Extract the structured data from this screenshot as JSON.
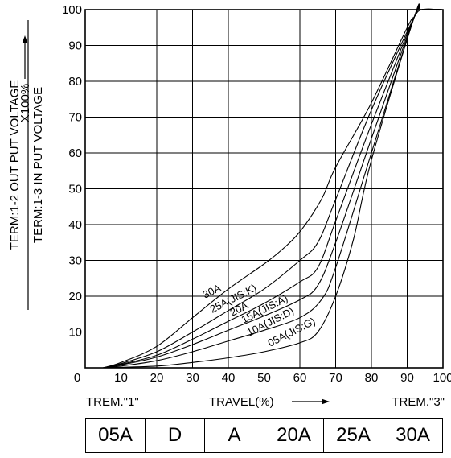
{
  "chart_data": {
    "type": "line",
    "title": "",
    "xlabel": "TRAVEL(%)",
    "ylabel": {
      "numerator": "TERM:1-2 OUT PUT VOLTAGE",
      "denominator": "TERM:1-3 IN PUT VOLTAGE",
      "multiplier": "X100%"
    },
    "xlim": [
      0,
      100
    ],
    "ylim": [
      0,
      100
    ],
    "x_ticks": [
      "0",
      "10",
      "20",
      "30",
      "40",
      "50",
      "60",
      "70",
      "80",
      "90",
      "100"
    ],
    "y_ticks": [
      "10",
      "20",
      "30",
      "40",
      "50",
      "60",
      "70",
      "80",
      "90",
      "100"
    ],
    "grid": true,
    "x_end_labels": {
      "left": "TREM.\"1\"",
      "right": "TREM.\"3\""
    },
    "series": [
      {
        "name": "30A",
        "label_angle": -27,
        "points": [
          [
            5,
            0
          ],
          [
            10,
            1.5
          ],
          [
            20,
            6
          ],
          [
            30,
            14
          ],
          [
            40,
            22
          ],
          [
            50,
            29
          ],
          [
            55,
            33
          ],
          [
            60,
            38
          ],
          [
            66,
            47
          ],
          [
            70,
            56
          ],
          [
            80,
            74
          ],
          [
            90,
            95
          ],
          [
            92,
            98
          ],
          [
            94,
            100
          ],
          [
            100,
            100
          ]
        ]
      },
      {
        "name": "25A(JIS:K)",
        "label_angle": -27,
        "points": [
          [
            5,
            0
          ],
          [
            10,
            1.2
          ],
          [
            20,
            4.5
          ],
          [
            30,
            10
          ],
          [
            40,
            16
          ],
          [
            50,
            22
          ],
          [
            60,
            30
          ],
          [
            65,
            35
          ],
          [
            70,
            47
          ],
          [
            80,
            72
          ],
          [
            92,
            98
          ],
          [
            94,
            100
          ],
          [
            100,
            100
          ]
        ]
      },
      {
        "name": "20A",
        "label_angle": -27,
        "points": [
          [
            5,
            0
          ],
          [
            10,
            1
          ],
          [
            20,
            3.5
          ],
          [
            30,
            8
          ],
          [
            40,
            13
          ],
          [
            50,
            18
          ],
          [
            60,
            24
          ],
          [
            65,
            28
          ],
          [
            70,
            41
          ],
          [
            80,
            68
          ],
          [
            92,
            98
          ],
          [
            94,
            100
          ],
          [
            100,
            100
          ]
        ]
      },
      {
        "name": "15A(JIS:A)",
        "label_angle": -27,
        "points": [
          [
            5,
            0
          ],
          [
            10,
            0.8
          ],
          [
            20,
            3
          ],
          [
            30,
            6.5
          ],
          [
            40,
            10.5
          ],
          [
            50,
            14.5
          ],
          [
            60,
            19
          ],
          [
            65,
            23
          ],
          [
            70,
            35
          ],
          [
            80,
            64
          ],
          [
            92,
            98
          ],
          [
            94,
            100
          ],
          [
            100,
            100
          ]
        ]
      },
      {
        "name": "10A(JIS:D)",
        "label_angle": -27,
        "points": [
          [
            5,
            0
          ],
          [
            10,
            0.5
          ],
          [
            20,
            2
          ],
          [
            30,
            4.5
          ],
          [
            40,
            7.5
          ],
          [
            50,
            10.5
          ],
          [
            60,
            14
          ],
          [
            66,
            19
          ],
          [
            70,
            28
          ],
          [
            80,
            60
          ],
          [
            92,
            98
          ],
          [
            94,
            100
          ],
          [
            100,
            100
          ]
        ]
      },
      {
        "name": "05A(JIS:G)",
        "label_angle": -27,
        "points": [
          [
            5,
            0
          ],
          [
            20,
            0.5
          ],
          [
            30,
            1.5
          ],
          [
            40,
            2.8
          ],
          [
            50,
            4.5
          ],
          [
            60,
            7
          ],
          [
            65,
            10
          ],
          [
            70,
            20
          ],
          [
            75,
            36
          ],
          [
            80,
            58
          ],
          [
            92,
            98
          ],
          [
            94,
            100
          ],
          [
            100,
            100
          ]
        ]
      }
    ]
  },
  "taper_table": [
    "05A",
    "D",
    "A",
    "20A",
    "25A",
    "30A"
  ]
}
